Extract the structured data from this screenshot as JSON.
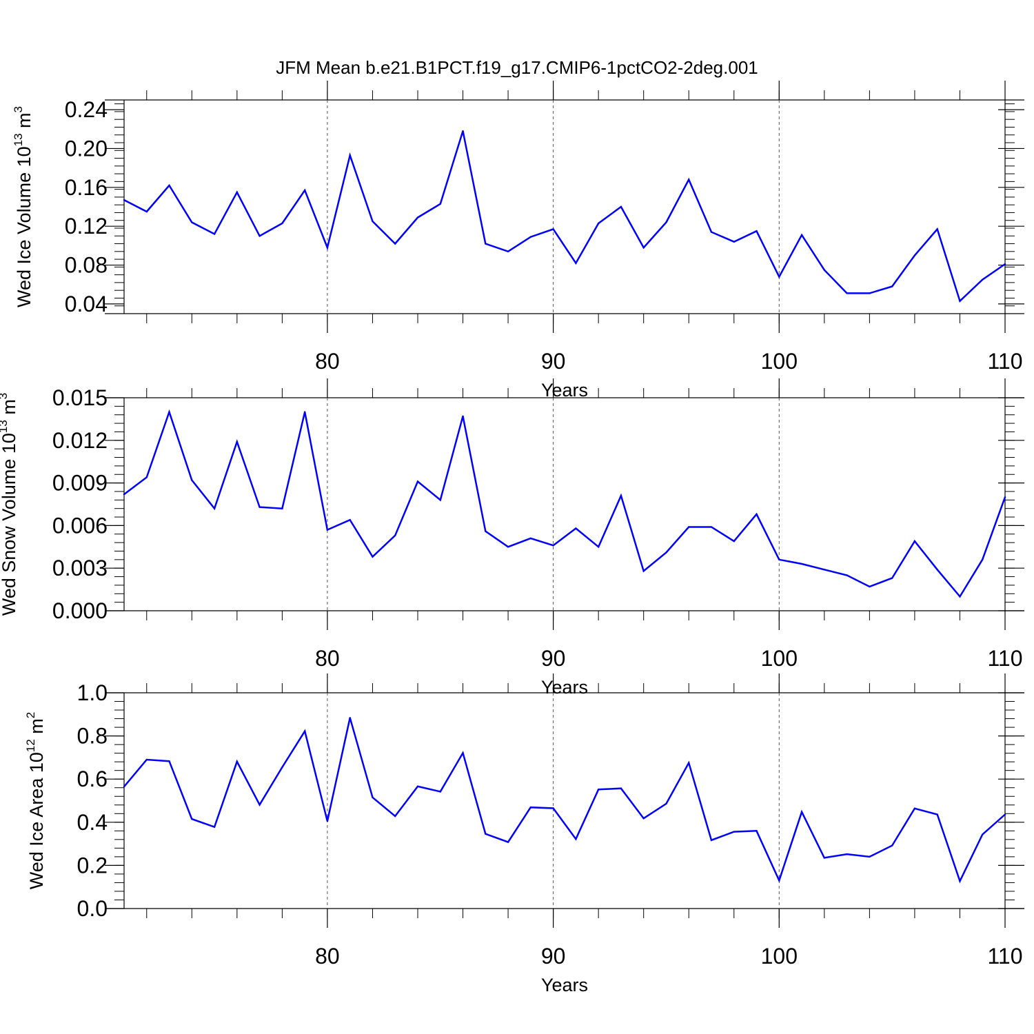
{
  "title": "JFM Mean b.e21.B1PCT.f19_g17.CMIP6-1pctCO2-2deg.001",
  "colors": {
    "line": "#0000ff",
    "axis": "#000000",
    "grid": "#555555",
    "background": "#ffffff"
  },
  "chart_data": [
    {
      "type": "line",
      "ylabel": {
        "main": "Wed Ice Volume 10",
        "sup": "13",
        "unit": " m",
        "unit_sup": "3"
      },
      "xlabel": "Years",
      "xlim": [
        71,
        110
      ],
      "ylim": [
        0.03,
        0.25
      ],
      "yticks": [
        0.04,
        0.08,
        0.12,
        0.16,
        0.2,
        0.24
      ],
      "ytick_labels": [
        "0.04",
        "0.08",
        "0.12",
        "0.16",
        "0.20",
        "0.24"
      ],
      "xticks": [
        80,
        90,
        100,
        110
      ],
      "xtick_labels": [
        "80",
        "90",
        "100",
        "110"
      ],
      "grid": "vertical dashed at major x ticks",
      "x": [
        71,
        72,
        73,
        74,
        75,
        76,
        77,
        78,
        79,
        80,
        81,
        82,
        83,
        84,
        85,
        86,
        87,
        88,
        89,
        90,
        91,
        92,
        93,
        94,
        95,
        96,
        97,
        98,
        99,
        100,
        101,
        102,
        103,
        104,
        105,
        106,
        107,
        108,
        109,
        110
      ],
      "y": [
        0.147,
        0.135,
        0.162,
        0.124,
        0.112,
        0.155,
        0.11,
        0.123,
        0.157,
        0.098,
        0.193,
        0.125,
        0.102,
        0.129,
        0.143,
        0.218,
        0.102,
        0.094,
        0.109,
        0.117,
        0.082,
        0.123,
        0.14,
        0.098,
        0.124,
        0.168,
        0.114,
        0.104,
        0.115,
        0.068,
        0.111,
        0.075,
        0.051,
        0.051,
        0.058,
        0.09,
        0.117,
        0.043,
        0.065,
        0.081
      ]
    },
    {
      "type": "line",
      "ylabel": {
        "main": "Wed Snow Volume 10",
        "sup": "13",
        "unit": " m",
        "unit_sup": "3"
      },
      "xlabel": "Years",
      "xlim": [
        71,
        110
      ],
      "ylim": [
        0.0,
        0.015
      ],
      "yticks": [
        0.0,
        0.003,
        0.006,
        0.009,
        0.012,
        0.015
      ],
      "ytick_labels": [
        "0.000",
        "0.003",
        "0.006",
        "0.009",
        "0.012",
        "0.015"
      ],
      "xticks": [
        80,
        90,
        100,
        110
      ],
      "xtick_labels": [
        "80",
        "90",
        "100",
        "110"
      ],
      "grid": "vertical dashed at major x ticks",
      "x": [
        71,
        72,
        73,
        74,
        75,
        76,
        77,
        78,
        79,
        80,
        81,
        82,
        83,
        84,
        85,
        86,
        87,
        88,
        89,
        90,
        91,
        92,
        93,
        94,
        95,
        96,
        97,
        98,
        99,
        100,
        101,
        102,
        103,
        104,
        105,
        106,
        107,
        108,
        109,
        110
      ],
      "y": [
        0.0082,
        0.0094,
        0.014,
        0.0092,
        0.0072,
        0.0119,
        0.0073,
        0.0072,
        0.014,
        0.0057,
        0.0064,
        0.0038,
        0.0053,
        0.0091,
        0.0078,
        0.0137,
        0.0056,
        0.0045,
        0.0051,
        0.0046,
        0.0058,
        0.0045,
        0.0081,
        0.0028,
        0.0041,
        0.0059,
        0.0059,
        0.0049,
        0.0068,
        0.0036,
        0.0033,
        0.0029,
        0.0025,
        0.0017,
        0.0023,
        0.0049,
        0.0029,
        0.001,
        0.0036,
        0.008
      ]
    },
    {
      "type": "line",
      "ylabel": {
        "main": "Wed Ice Area 10",
        "sup": "12",
        "unit": " m",
        "unit_sup": "2"
      },
      "xlabel": "Years",
      "xlim": [
        71,
        110
      ],
      "ylim": [
        0.0,
        1.0
      ],
      "yticks": [
        0.0,
        0.2,
        0.4,
        0.6,
        0.8,
        1.0
      ],
      "ytick_labels": [
        "0.0",
        "0.2",
        "0.4",
        "0.6",
        "0.8",
        "1.0"
      ],
      "xticks": [
        80,
        90,
        100,
        110
      ],
      "xtick_labels": [
        "80",
        "90",
        "100",
        "110"
      ],
      "grid": "vertical dashed at major x ticks",
      "x": [
        71,
        72,
        73,
        74,
        75,
        76,
        77,
        78,
        79,
        80,
        81,
        82,
        83,
        84,
        85,
        86,
        87,
        88,
        89,
        90,
        91,
        92,
        93,
        94,
        95,
        96,
        97,
        98,
        99,
        100,
        101,
        102,
        103,
        104,
        105,
        106,
        107,
        108,
        109,
        110
      ],
      "y": [
        0.565,
        0.69,
        0.683,
        0.415,
        0.378,
        0.681,
        0.481,
        0.655,
        0.822,
        0.405,
        0.884,
        0.515,
        0.428,
        0.566,
        0.542,
        0.721,
        0.346,
        0.308,
        0.469,
        0.465,
        0.322,
        0.552,
        0.557,
        0.418,
        0.486,
        0.675,
        0.317,
        0.356,
        0.36,
        0.13,
        0.448,
        0.235,
        0.252,
        0.24,
        0.292,
        0.464,
        0.436,
        0.127,
        0.343,
        0.436
      ]
    }
  ]
}
